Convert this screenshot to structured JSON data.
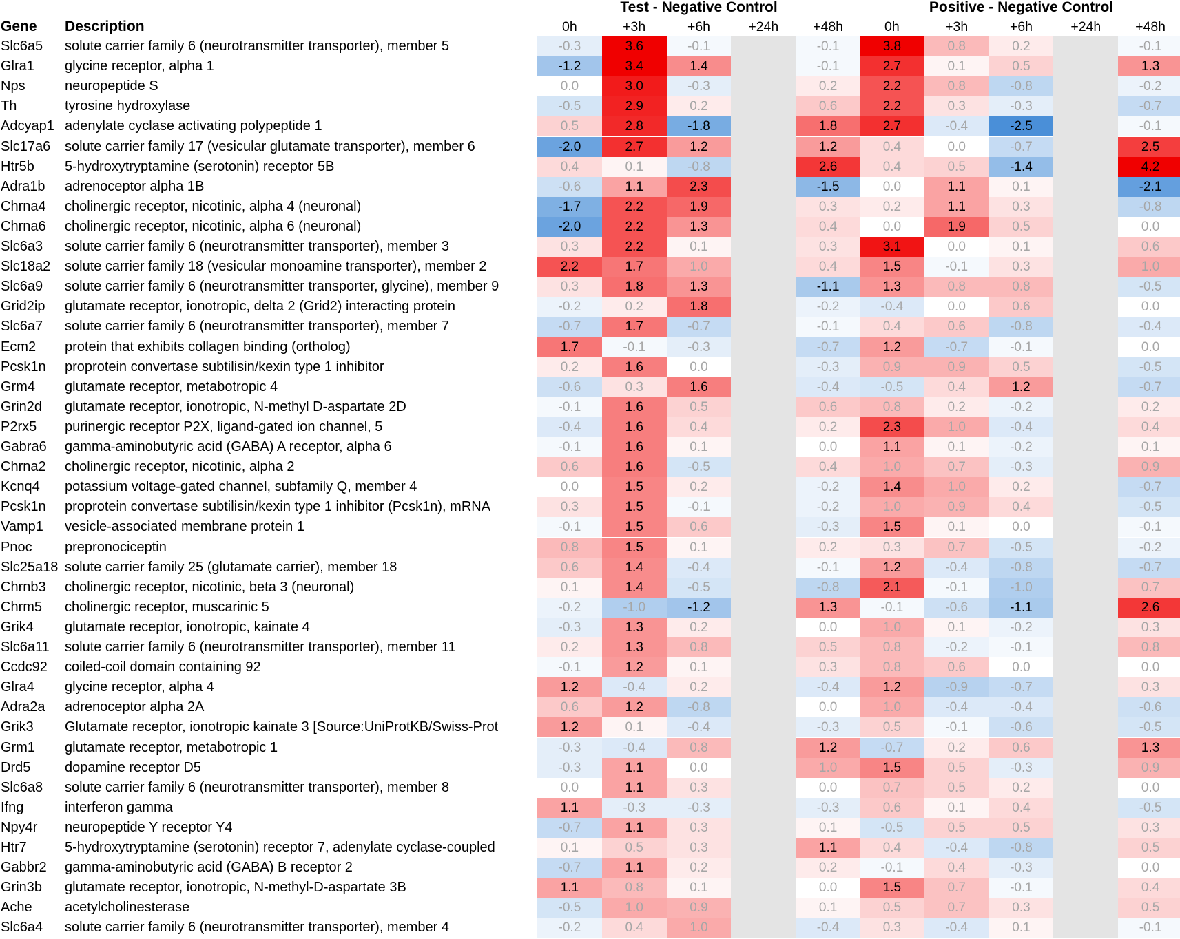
{
  "chart_data": {
    "type": "heatmap",
    "title": "",
    "headers": {
      "gene": "Gene",
      "description": "Description"
    },
    "groups": [
      "Test - Negative Control",
      "Positive - Negative Control"
    ],
    "timepoints": [
      "0h",
      "+3h",
      "+6h",
      "+24h",
      "+48h"
    ],
    "missing_timepoint": "+24h",
    "color_scale": {
      "min": -2.5,
      "mid": 0,
      "max": 3.8,
      "low_color": "#4a8fd8",
      "mid_color": "#ffffff",
      "high_color": "#f00000"
    },
    "rows": [
      {
        "gene": "Slc6a5",
        "description": "solute carrier family 6 (neurotransmitter transporter), member 5",
        "test": [
          -0.3,
          3.6,
          -0.1,
          null,
          -0.1
        ],
        "positive": [
          3.8,
          0.8,
          0.2,
          null,
          -0.1
        ]
      },
      {
        "gene": "Glra1",
        "description": "glycine receptor, alpha 1",
        "test": [
          -1.2,
          3.4,
          1.4,
          null,
          -0.1
        ],
        "positive": [
          2.7,
          0.1,
          0.5,
          null,
          1.3
        ]
      },
      {
        "gene": "Nps",
        "description": "neuropeptide S",
        "test": [
          0.0,
          3.0,
          -0.3,
          null,
          0.2
        ],
        "positive": [
          2.2,
          0.8,
          -0.8,
          null,
          -0.2
        ]
      },
      {
        "gene": "Th",
        "description": "tyrosine hydroxylase",
        "test": [
          -0.5,
          2.9,
          0.2,
          null,
          0.6
        ],
        "positive": [
          2.2,
          0.3,
          -0.3,
          null,
          -0.7
        ]
      },
      {
        "gene": "Adcyap1",
        "description": "adenylate cyclase activating polypeptide 1",
        "test": [
          0.5,
          2.8,
          -1.8,
          null,
          1.8
        ],
        "positive": [
          2.7,
          -0.4,
          -2.5,
          null,
          -0.1
        ]
      },
      {
        "gene": "Slc17a6",
        "description": "solute carrier family 17 (vesicular glutamate transporter), member 6",
        "test": [
          -2.0,
          2.7,
          1.2,
          null,
          1.2
        ],
        "positive": [
          0.4,
          0.0,
          -0.7,
          null,
          2.5
        ]
      },
      {
        "gene": "Htr5b",
        "description": "5-hydroxytryptamine (serotonin) receptor 5B",
        "test": [
          0.4,
          0.1,
          -0.8,
          null,
          2.6
        ],
        "positive": [
          0.4,
          0.5,
          -1.4,
          null,
          4.2
        ]
      },
      {
        "gene": "Adra1b",
        "description": "adrenoceptor alpha 1B",
        "test": [
          -0.6,
          1.1,
          2.3,
          null,
          -1.5
        ],
        "positive": [
          0.0,
          1.1,
          0.1,
          null,
          -2.1
        ]
      },
      {
        "gene": "Chrna4",
        "description": "cholinergic receptor, nicotinic, alpha 4 (neuronal)",
        "test": [
          -1.7,
          2.2,
          1.9,
          null,
          0.3
        ],
        "positive": [
          0.2,
          1.1,
          0.3,
          null,
          -0.8
        ]
      },
      {
        "gene": "Chrna6",
        "description": "cholinergic receptor, nicotinic, alpha 6 (neuronal)",
        "test": [
          -2.0,
          2.2,
          1.3,
          null,
          0.4
        ],
        "positive": [
          0.0,
          1.9,
          0.5,
          null,
          0.0
        ]
      },
      {
        "gene": "Slc6a3",
        "description": "solute carrier family 6 (neurotransmitter transporter), member 3",
        "test": [
          0.3,
          2.2,
          0.1,
          null,
          0.3
        ],
        "positive": [
          3.1,
          0.0,
          0.1,
          null,
          0.6
        ]
      },
      {
        "gene": "Slc18a2",
        "description": "solute carrier family 18 (vesicular monoamine transporter), member 2",
        "test": [
          2.2,
          1.7,
          1.0,
          null,
          0.4
        ],
        "positive": [
          1.5,
          -0.1,
          0.3,
          null,
          1.0
        ]
      },
      {
        "gene": "Slc6a9",
        "description": "solute carrier family 6 (neurotransmitter transporter, glycine), member 9",
        "test": [
          0.3,
          1.8,
          1.3,
          null,
          -1.1
        ],
        "positive": [
          1.3,
          0.8,
          0.8,
          null,
          -0.5
        ]
      },
      {
        "gene": "Grid2ip",
        "description": "glutamate receptor, ionotropic, delta 2 (Grid2) interacting protein",
        "test": [
          -0.2,
          0.2,
          1.8,
          null,
          -0.2
        ],
        "positive": [
          -0.4,
          0.0,
          0.6,
          null,
          0.0
        ]
      },
      {
        "gene": "Slc6a7",
        "description": "solute carrier family 6 (neurotransmitter transporter), member 7",
        "test": [
          -0.7,
          1.7,
          -0.7,
          null,
          -0.1
        ],
        "positive": [
          0.4,
          0.6,
          -0.8,
          null,
          -0.4
        ]
      },
      {
        "gene": "Ecm2",
        "description": "protein that exhibits collagen binding (ortholog)",
        "test": [
          1.7,
          -0.1,
          -0.3,
          null,
          -0.7
        ],
        "positive": [
          1.2,
          -0.7,
          -0.1,
          null,
          0.0
        ]
      },
      {
        "gene": "Pcsk1n",
        "description": "proprotein convertase subtilisin/kexin type 1 inhibitor",
        "test": [
          0.2,
          1.6,
          0.0,
          null,
          -0.3
        ],
        "positive": [
          0.9,
          0.9,
          0.5,
          null,
          -0.5
        ]
      },
      {
        "gene": "Grm4",
        "description": "glutamate receptor, metabotropic 4",
        "test": [
          -0.6,
          0.3,
          1.6,
          null,
          -0.4
        ],
        "positive": [
          -0.5,
          0.4,
          1.2,
          null,
          -0.7
        ]
      },
      {
        "gene": "Grin2d",
        "description": "glutamate receptor, ionotropic, N-methyl D-aspartate 2D",
        "test": [
          -0.1,
          1.6,
          0.5,
          null,
          0.6
        ],
        "positive": [
          0.8,
          0.2,
          -0.2,
          null,
          0.2
        ]
      },
      {
        "gene": "P2rx5",
        "description": "purinergic receptor P2X, ligand-gated ion channel, 5",
        "test": [
          -0.4,
          1.6,
          0.4,
          null,
          0.2
        ],
        "positive": [
          2.3,
          1.0,
          -0.4,
          null,
          0.4
        ]
      },
      {
        "gene": "Gabra6",
        "description": "gamma-aminobutyric acid (GABA) A receptor, alpha 6",
        "test": [
          -0.1,
          1.6,
          0.1,
          null,
          0.0
        ],
        "positive": [
          1.1,
          0.1,
          -0.2,
          null,
          0.1
        ]
      },
      {
        "gene": "Chrna2",
        "description": "cholinergic receptor, nicotinic, alpha 2",
        "test": [
          0.6,
          1.6,
          -0.5,
          null,
          0.4
        ],
        "positive": [
          1.0,
          0.7,
          -0.3,
          null,
          0.9
        ]
      },
      {
        "gene": "Kcnq4",
        "description": "potassium voltage-gated channel, subfamily Q, member 4",
        "test": [
          0.0,
          1.5,
          0.2,
          null,
          -0.2
        ],
        "positive": [
          1.4,
          1.0,
          0.2,
          null,
          -0.7
        ]
      },
      {
        "gene": "Pcsk1n",
        "description": "proprotein convertase subtilisin/kexin type 1 inhibitor (Pcsk1n), mRNA",
        "test": [
          0.3,
          1.5,
          -0.1,
          null,
          -0.2
        ],
        "positive": [
          1.0,
          0.9,
          0.4,
          null,
          -0.5
        ]
      },
      {
        "gene": "Vamp1",
        "description": "vesicle-associated membrane protein 1",
        "test": [
          -0.1,
          1.5,
          0.6,
          null,
          -0.3
        ],
        "positive": [
          1.5,
          0.1,
          0.0,
          null,
          -0.1
        ]
      },
      {
        "gene": "Pnoc",
        "description": "prepronociceptin",
        "test": [
          0.8,
          1.5,
          0.1,
          null,
          0.2
        ],
        "positive": [
          0.3,
          0.7,
          -0.5,
          null,
          -0.2
        ]
      },
      {
        "gene": "Slc25a18",
        "description": "solute carrier family 25 (glutamate carrier), member 18",
        "test": [
          0.6,
          1.4,
          -0.4,
          null,
          -0.1
        ],
        "positive": [
          1.2,
          -0.4,
          -0.8,
          null,
          -0.7
        ]
      },
      {
        "gene": "Chrnb3",
        "description": "cholinergic receptor, nicotinic, beta 3 (neuronal)",
        "test": [
          0.1,
          1.4,
          -0.5,
          null,
          -0.8
        ],
        "positive": [
          2.1,
          -0.1,
          -1.0,
          null,
          0.7
        ]
      },
      {
        "gene": "Chrm5",
        "description": "cholinergic receptor, muscarinic 5",
        "test": [
          -0.2,
          -1.0,
          -1.2,
          null,
          1.3
        ],
        "positive": [
          -0.1,
          -0.6,
          -1.1,
          null,
          2.6
        ]
      },
      {
        "gene": "Grik4",
        "description": "glutamate receptor, ionotropic, kainate 4",
        "test": [
          -0.3,
          1.3,
          0.2,
          null,
          0.0
        ],
        "positive": [
          1.0,
          0.1,
          -0.2,
          null,
          0.3
        ]
      },
      {
        "gene": "Slc6a11",
        "description": "solute carrier family 6 (neurotransmitter transporter), member 11",
        "test": [
          0.2,
          1.3,
          0.8,
          null,
          0.5
        ],
        "positive": [
          0.8,
          -0.2,
          -0.1,
          null,
          0.8
        ]
      },
      {
        "gene": "Ccdc92",
        "description": "coiled-coil domain containing 92",
        "test": [
          -0.1,
          1.2,
          0.1,
          null,
          0.3
        ],
        "positive": [
          0.8,
          0.6,
          0.0,
          null,
          0.0
        ]
      },
      {
        "gene": "Glra4",
        "description": "glycine receptor, alpha 4",
        "test": [
          1.2,
          -0.4,
          0.2,
          null,
          -0.4
        ],
        "positive": [
          1.2,
          -0.9,
          -0.7,
          null,
          0.3
        ]
      },
      {
        "gene": "Adra2a",
        "description": "adrenoceptor alpha 2A",
        "test": [
          0.6,
          1.2,
          -0.8,
          null,
          0.0
        ],
        "positive": [
          1.0,
          -0.4,
          -0.4,
          null,
          -0.6
        ]
      },
      {
        "gene": "Grik3",
        "description": "Glutamate receptor, ionotropic kainate 3 [Source:UniProtKB/Swiss-Prot",
        "test": [
          1.2,
          0.1,
          -0.4,
          null,
          -0.3
        ],
        "positive": [
          0.5,
          -0.1,
          -0.6,
          null,
          -0.5
        ]
      },
      {
        "gene": "Grm1",
        "description": "glutamate receptor, metabotropic 1",
        "test": [
          -0.3,
          -0.4,
          0.8,
          null,
          1.2
        ],
        "positive": [
          -0.7,
          0.2,
          0.6,
          null,
          1.3
        ]
      },
      {
        "gene": "Drd5",
        "description": "dopamine receptor D5",
        "test": [
          -0.3,
          1.1,
          0.0,
          null,
          1.0
        ],
        "positive": [
          1.5,
          0.5,
          -0.3,
          null,
          0.9
        ]
      },
      {
        "gene": "Slc6a8",
        "description": "solute carrier family 6 (neurotransmitter transporter), member 8",
        "test": [
          0.0,
          1.1,
          0.3,
          null,
          0.0
        ],
        "positive": [
          0.7,
          0.5,
          0.2,
          null,
          0.0
        ]
      },
      {
        "gene": "Ifng",
        "description": "interferon gamma",
        "test": [
          1.1,
          -0.3,
          -0.3,
          null,
          -0.3
        ],
        "positive": [
          0.6,
          0.1,
          0.4,
          null,
          -0.5
        ]
      },
      {
        "gene": "Npy4r",
        "description": "neuropeptide Y receptor Y4",
        "test": [
          -0.7,
          1.1,
          0.3,
          null,
          0.1
        ],
        "positive": [
          -0.5,
          0.5,
          0.5,
          null,
          0.3
        ]
      },
      {
        "gene": "Htr7",
        "description": "5-hydroxytryptamine (serotonin) receptor 7, adenylate cyclase-coupled",
        "test": [
          0.1,
          0.5,
          0.3,
          null,
          1.1
        ],
        "positive": [
          0.4,
          -0.4,
          -0.8,
          null,
          0.5
        ]
      },
      {
        "gene": "Gabbr2",
        "description": "gamma-aminobutyric acid (GABA) B receptor 2",
        "test": [
          -0.7,
          1.1,
          0.2,
          null,
          0.2
        ],
        "positive": [
          -0.1,
          0.4,
          -0.3,
          null,
          0.0
        ]
      },
      {
        "gene": "Grin3b",
        "description": "glutamate receptor, ionotropic, N-methyl-D-aspartate 3B",
        "test": [
          1.1,
          0.8,
          0.1,
          null,
          0.0
        ],
        "positive": [
          1.5,
          0.7,
          -0.1,
          null,
          0.4
        ]
      },
      {
        "gene": "Ache",
        "description": "acetylcholinesterase",
        "test": [
          -0.5,
          1.0,
          0.9,
          null,
          0.1
        ],
        "positive": [
          0.5,
          0.7,
          0.3,
          null,
          0.5
        ]
      },
      {
        "gene": "Slc6a4",
        "description": "solute carrier family 6 (neurotransmitter transporter), member 4",
        "test": [
          -0.2,
          0.4,
          1.0,
          null,
          -0.4
        ],
        "positive": [
          0.3,
          -0.4,
          0.1,
          null,
          -0.1
        ]
      }
    ]
  }
}
